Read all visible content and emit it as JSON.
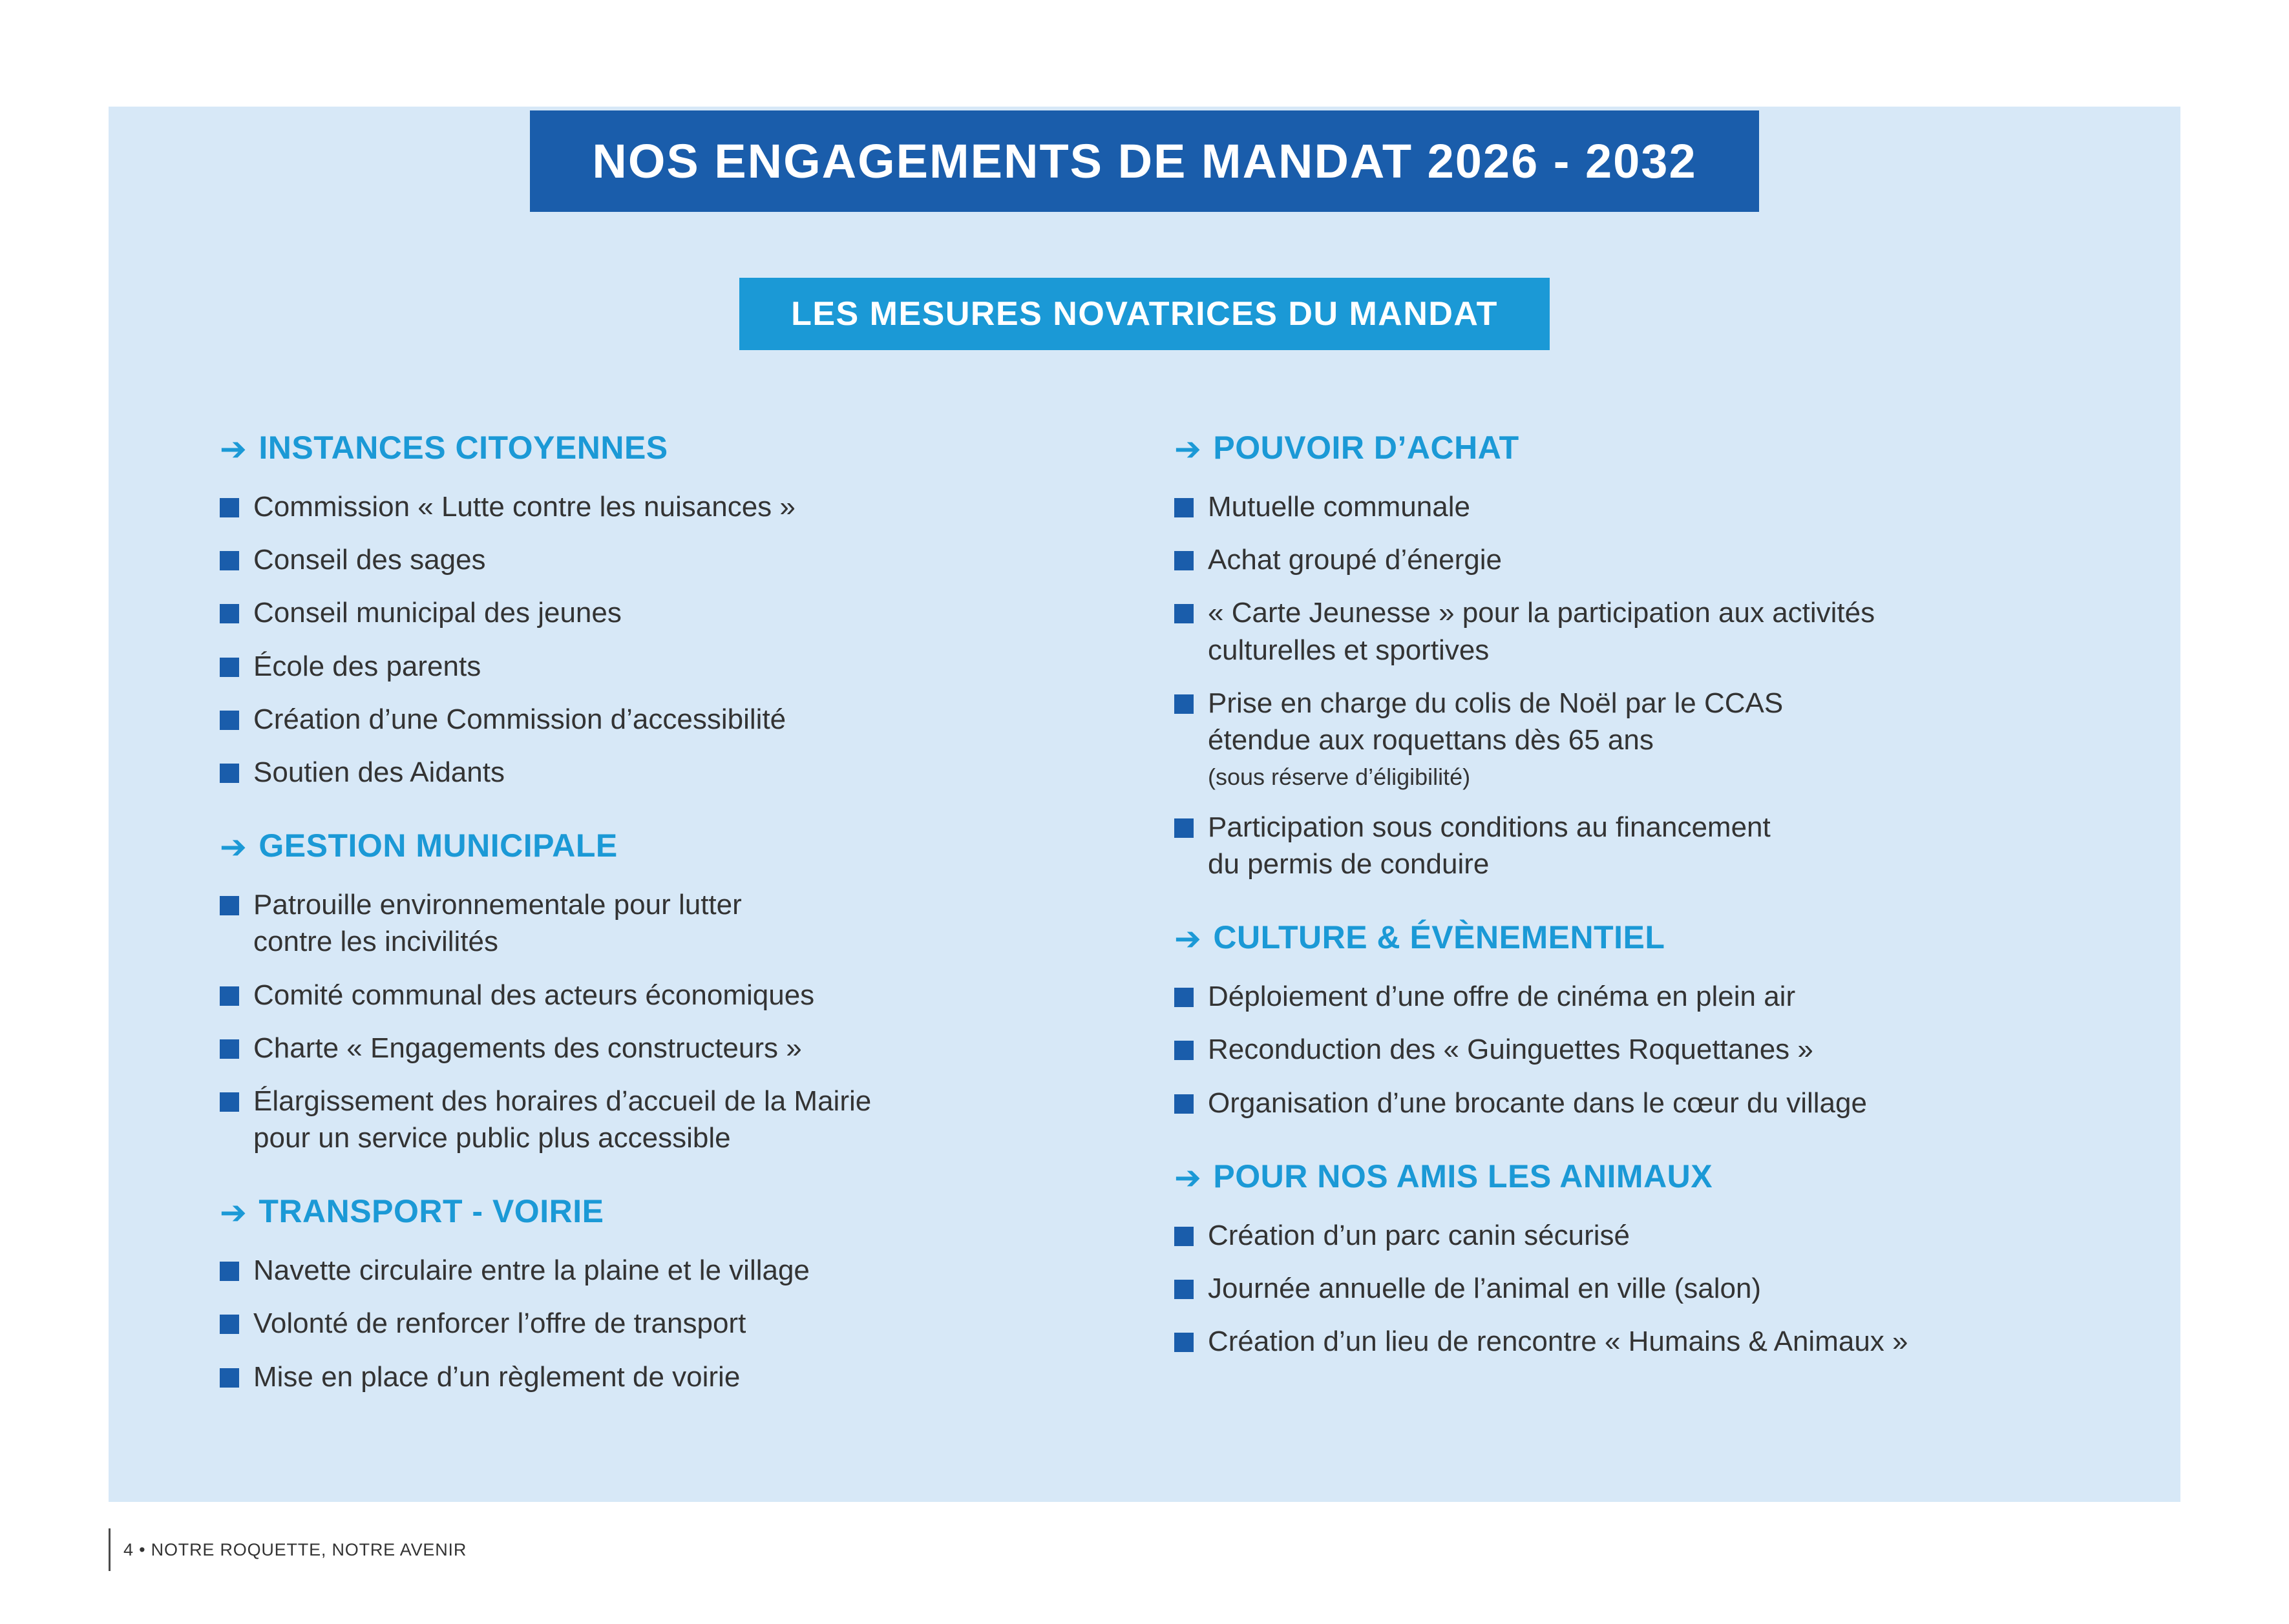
{
  "page": {
    "title": "NOS ENGAGEMENTS DE MANDAT 2026 - 2032",
    "subtitle": "LES MESURES NOVATRICES DU MANDAT",
    "footer": "4 • NOTRE ROQUETTE, NOTRE AVENIR"
  },
  "icons": {
    "arrow": "➔",
    "bullet": "■"
  },
  "colors": {
    "banner_dark": "#1a5dab",
    "banner_light": "#1b99d6",
    "heading": "#1b99d6",
    "panel_bg": "#d7e8f7",
    "bullet": "#1a5dab",
    "text": "#333333"
  },
  "columns": [
    {
      "sections": [
        {
          "heading": "INSTANCES CITOYENNES",
          "items": [
            {
              "text": "Commission « Lutte contre les nuisances »"
            },
            {
              "text": "Conseil des sages"
            },
            {
              "text": "Conseil municipal des jeunes"
            },
            {
              "text": "École des parents"
            },
            {
              "text": "Création d’une Commission d’accessibilité"
            },
            {
              "text": "Soutien des Aidants"
            }
          ]
        },
        {
          "heading": "GESTION MUNICIPALE",
          "items": [
            {
              "text": "Patrouille environnementale pour lutter\ncontre les incivilités"
            },
            {
              "text": "Comité communal des acteurs économiques"
            },
            {
              "text": "Charte « Engagements des constructeurs »"
            },
            {
              "text": "Élargissement des horaires d’accueil de la Mairie\npour un service public plus accessible"
            }
          ]
        },
        {
          "heading": "TRANSPORT - VOIRIE",
          "items": [
            {
              "text": "Navette circulaire entre la plaine et le village"
            },
            {
              "text": "Volonté de renforcer l’offre de transport"
            },
            {
              "text": "Mise en place d’un règlement de voirie"
            }
          ]
        }
      ]
    },
    {
      "sections": [
        {
          "heading": "POUVOIR D’ACHAT",
          "items": [
            {
              "text": "Mutuelle communale"
            },
            {
              "text": "Achat groupé d’énergie"
            },
            {
              "text": "« Carte Jeunesse » pour la participation aux activités\nculturelles et sportives"
            },
            {
              "text": "Prise en charge du colis de Noël par le CCAS\nétendue aux roquettans dès 65 ans",
              "note": "(sous réserve d’éligibilité)"
            },
            {
              "text": "Participation sous conditions au financement\ndu permis de conduire"
            }
          ]
        },
        {
          "heading": "CULTURE & ÉVÈNEMENTIEL",
          "items": [
            {
              "text": "Déploiement d’une offre de cinéma en plein air"
            },
            {
              "text": "Reconduction des « Guinguettes Roquettanes »"
            },
            {
              "text": "Organisation d’une brocante dans le cœur du village"
            }
          ]
        },
        {
          "heading": "POUR NOS AMIS LES ANIMAUX",
          "items": [
            {
              "text": "Création d’un parc canin sécurisé"
            },
            {
              "text": "Journée annuelle de l’animal en ville (salon)"
            },
            {
              "text": "Création d’un lieu de rencontre « Humains & Animaux »"
            }
          ]
        }
      ]
    }
  ]
}
